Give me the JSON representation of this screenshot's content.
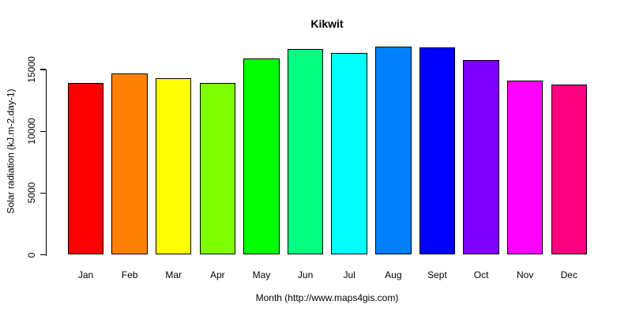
{
  "chart_data": {
    "type": "bar",
    "title": "Kikwit",
    "xlabel": "Month (http://www.maps4gis.com)",
    "ylabel": "Solar radiation (kJ.m-2.day-1)",
    "categories": [
      "Jan",
      "Feb",
      "Mar",
      "Apr",
      "May",
      "Jun",
      "Jul",
      "Aug",
      "Sept",
      "Oct",
      "Nov",
      "Dec"
    ],
    "values": [
      13930,
      14680,
      14280,
      13900,
      15910,
      16670,
      16330,
      16840,
      16770,
      15760,
      14100,
      13810
    ],
    "bar_colors": [
      "#FF0000",
      "#FF8000",
      "#FFFF00",
      "#80FF00",
      "#00FF00",
      "#00FF80",
      "#00FFFF",
      "#0080FF",
      "#0000FF",
      "#8000FF",
      "#FF00FF",
      "#FF0080"
    ],
    "bar_border_color": "#000000",
    "yticks": [
      0,
      5000,
      10000,
      15000
    ],
    "ylim": [
      0,
      17000
    ],
    "grid": false,
    "legend": null,
    "background_color": "#FFFFFF",
    "text_color": "#000000"
  }
}
